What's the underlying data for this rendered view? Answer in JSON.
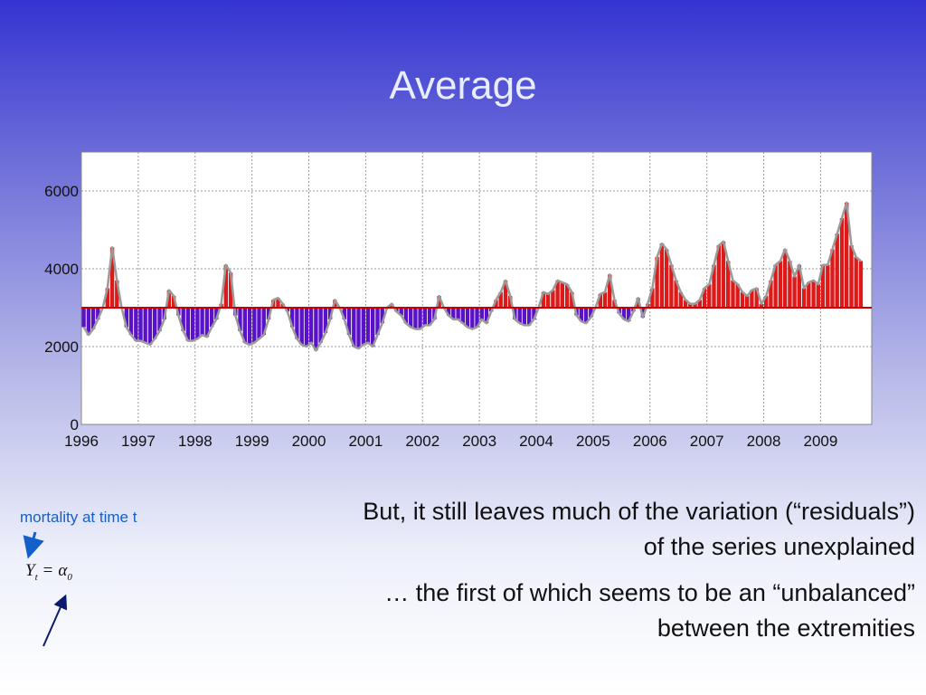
{
  "slide": {
    "title": "Average",
    "paragraph1": "But, it still leaves much of the variation (“residuals”) of the series unexplained",
    "paragraph2": "… the first of which seems to be an “unbalanced” between the extremities",
    "annotation": "mortality at time t",
    "formula": {
      "lhs": "Y",
      "lhs_sub": "t",
      "eq": "=",
      "rhs": "α",
      "rhs_sub": "0"
    }
  },
  "colors": {
    "above": "#dd1a1a",
    "below": "#5a12c8",
    "baseline": "#cc0000",
    "annotation": "#1560c8"
  },
  "chart_data": {
    "type": "bar",
    "baseline": 3000,
    "ylim": [
      0,
      7000
    ],
    "xlim": [
      1996,
      2009.9
    ],
    "yticks": [
      0,
      2000,
      4000,
      6000
    ],
    "xticks": [
      "1996",
      "1997",
      "1998",
      "1999",
      "2000",
      "2001",
      "2002",
      "2003",
      "2004",
      "2005",
      "2006",
      "2007",
      "2008",
      "2009"
    ],
    "grid": true,
    "start": "1996-01",
    "values": [
      2500,
      2300,
      2450,
      2700,
      3000,
      3500,
      4550,
      3700,
      3000,
      2500,
      2300,
      2150,
      2150,
      2100,
      2050,
      2200,
      2400,
      2700,
      3450,
      3300,
      2800,
      2400,
      2150,
      2150,
      2200,
      2300,
      2250,
      2500,
      2700,
      3100,
      4100,
      3900,
      2800,
      2400,
      2100,
      2050,
      2100,
      2200,
      2300,
      2700,
      3200,
      3250,
      3100,
      2900,
      2500,
      2200,
      2050,
      2000,
      2100,
      1900,
      2100,
      2350,
      2700,
      3200,
      3000,
      2700,
      2300,
      2000,
      1950,
      2050,
      2100,
      2000,
      2300,
      2600,
      3000,
      3100,
      2900,
      2800,
      2600,
      2500,
      2450,
      2450,
      2550,
      2550,
      2700,
      3300,
      3000,
      2800,
      2700,
      2700,
      2600,
      2500,
      2450,
      2500,
      2700,
      2600,
      2900,
      3200,
      3400,
      3700,
      3300,
      2700,
      2600,
      2550,
      2550,
      2700,
      3000,
      3400,
      3350,
      3450,
      3700,
      3650,
      3600,
      3400,
      2800,
      2650,
      2600,
      2750,
      3000,
      3350,
      3400,
      3850,
      3200,
      2850,
      2700,
      2650,
      2900,
      3250,
      2750,
      3100,
      3500,
      4300,
      4650,
      4500,
      4100,
      3700,
      3400,
      3200,
      3100,
      3100,
      3200,
      3500,
      3600,
      4100,
      4600,
      4700,
      4200,
      3700,
      3600,
      3400,
      3300,
      3450,
      3500,
      3100,
      3300,
      3700,
      4100,
      4200,
      4500,
      4200,
      3800,
      4100,
      3500,
      3650,
      3700,
      3600,
      4100,
      4100,
      4500,
      4900,
      5300,
      5700,
      4600,
      4300,
      4200
    ]
  }
}
